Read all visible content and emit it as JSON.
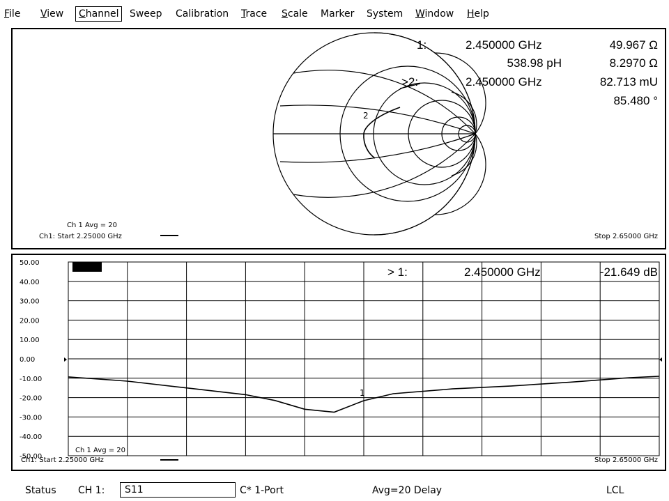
{
  "menu": {
    "items": [
      {
        "label": "File",
        "accel": "F",
        "rest": "ile"
      },
      {
        "label": "View",
        "accel": "V",
        "rest": "iew"
      },
      {
        "label": "Channel",
        "accel": "C",
        "rest": "hannel"
      },
      {
        "label": "Sweep",
        "accel": "",
        "rest": "Sweep"
      },
      {
        "label": "Calibration",
        "accel": "",
        "rest": "Calibration"
      },
      {
        "label": "Trace",
        "accel": "T",
        "rest": "race"
      },
      {
        "label": "Scale",
        "accel": "S",
        "rest": "cale"
      },
      {
        "label": "Marker",
        "accel": "",
        "rest": "Marker"
      },
      {
        "label": "System",
        "accel": "",
        "rest": "System"
      },
      {
        "label": "Window",
        "accel": "W",
        "rest": "indow"
      },
      {
        "label": "Help",
        "accel": "H",
        "rest": "elp"
      }
    ]
  },
  "smith": {
    "marker1_label": "1:",
    "marker1_freq": "2.450000 GHz",
    "marker1_r": "49.967 Ω",
    "marker1_cap": "538.98 pH",
    "marker1_x": "8.2970 Ω",
    "marker2_label": ">2:",
    "marker2_freq": "2.450000 GHz",
    "marker2_mag": "82.713 mU",
    "marker2_phase": "85.480 °",
    "avg_label": "Ch 1 Avg =  20",
    "start_label": "Ch1: Start  2.25000 GHz",
    "stop_label": "Stop  2.65000 GHz",
    "trace_marker_label": "2"
  },
  "logmag": {
    "marker_label": "> 1:",
    "marker_freq": "2.450000 GHz",
    "marker_value": "-21.649 dB",
    "avg_label": "Ch 1 Avg =  20",
    "start_label": "Ch1: Start  2.25000 GHz",
    "stop_label": "Stop  2.65000 GHz",
    "trace_marker_label": "1"
  },
  "chart_data": {
    "type": "line",
    "y_tick_labels": [
      "50.00",
      "40.00",
      "30.00",
      "20.00",
      "10.00",
      "0.00",
      "-10.00",
      "-20.00",
      "-30.00",
      "-40.00",
      "-50.00"
    ],
    "ylim": [
      -50,
      50
    ],
    "xlim": [
      2.25,
      2.65
    ],
    "series": [
      {
        "x": [
          2.25,
          2.29,
          2.33,
          2.37,
          2.39,
          2.41,
          2.43,
          2.45,
          2.47,
          2.51,
          2.55,
          2.59,
          2.63,
          2.65
        ],
        "values": [
          -9.3,
          -11.5,
          -15,
          -18.5,
          -21.5,
          -26,
          -27.5,
          -21.6,
          -18,
          -15.5,
          -14,
          -12,
          -9.7,
          -9
        ]
      }
    ]
  },
  "status": {
    "status_label": "Status",
    "channel_label": "CH 1:",
    "param_value": "S11",
    "cal_label": "C* 1-Port",
    "avg_label": "Avg=20 Delay",
    "remote_label": "LCL"
  }
}
